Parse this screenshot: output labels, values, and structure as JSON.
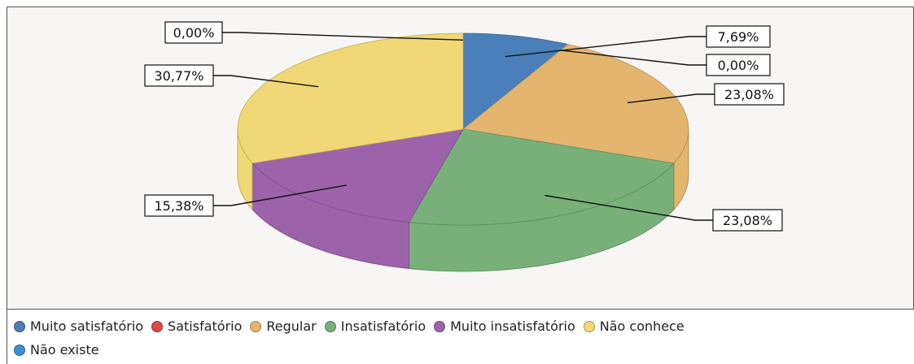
{
  "chart_data": {
    "type": "pie",
    "style": "3d",
    "title": "",
    "slices": [
      {
        "label": "Muito satisfatório",
        "value": 7.69,
        "display": "7,69%",
        "color": "#4a7fba"
      },
      {
        "label": "Satisfatório",
        "value": 0.0,
        "display": "0,00%",
        "color": "#d94a4a"
      },
      {
        "label": "Regular",
        "value": 23.08,
        "display": "23,08%",
        "color": "#e4b56e"
      },
      {
        "label": "Insatisfatório",
        "value": 23.08,
        "display": "23,08%",
        "color": "#79b07a"
      },
      {
        "label": "Muito insatisfatório",
        "value": 15.38,
        "display": "15,38%",
        "color": "#9d63aa"
      },
      {
        "label": "Não conhece",
        "value": 30.77,
        "display": "30,77%",
        "color": "#f0d876"
      },
      {
        "label": "Não existe",
        "value": 0.0,
        "display": "0,00%",
        "color": "#3f8fd0"
      }
    ],
    "legend_position": "bottom"
  }
}
